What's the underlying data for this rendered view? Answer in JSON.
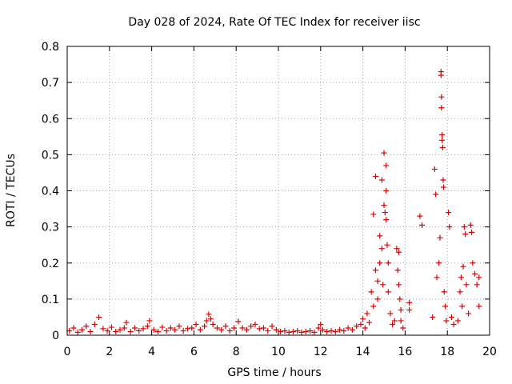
{
  "chart_data": {
    "type": "scatter",
    "title": "Day 028 of 2024, Rate Of TEC Index for receiver iisc",
    "xlabel": "GPS time / hours",
    "ylabel": "ROTI / TECUs",
    "xlim": [
      0,
      20
    ],
    "ylim": [
      0,
      0.8
    ],
    "x_ticks": [
      "0",
      "2",
      "4",
      "6",
      "8",
      "10",
      "12",
      "14",
      "16",
      "18",
      "20"
    ],
    "y_ticks": [
      "0",
      "0.1",
      "0.2",
      "0.3",
      "0.4",
      "0.5",
      "0.6",
      "0.7",
      "0.8"
    ],
    "marker": "plus",
    "marker_color": "#e00000",
    "series": [
      {
        "name": "ROTI",
        "points": [
          [
            0.1,
            0.012
          ],
          [
            0.3,
            0.02
          ],
          [
            0.5,
            0.008
          ],
          [
            0.7,
            0.015
          ],
          [
            0.9,
            0.025
          ],
          [
            1.1,
            0.01
          ],
          [
            1.3,
            0.03
          ],
          [
            1.5,
            0.05
          ],
          [
            1.7,
            0.018
          ],
          [
            1.9,
            0.012
          ],
          [
            2.1,
            0.022
          ],
          [
            2.3,
            0.01
          ],
          [
            2.5,
            0.015
          ],
          [
            2.7,
            0.02
          ],
          [
            2.8,
            0.035
          ],
          [
            3.0,
            0.01
          ],
          [
            3.2,
            0.02
          ],
          [
            3.4,
            0.012
          ],
          [
            3.6,
            0.018
          ],
          [
            3.8,
            0.025
          ],
          [
            3.9,
            0.04
          ],
          [
            4.1,
            0.015
          ],
          [
            4.3,
            0.01
          ],
          [
            4.5,
            0.022
          ],
          [
            4.7,
            0.012
          ],
          [
            4.9,
            0.02
          ],
          [
            5.1,
            0.015
          ],
          [
            5.3,
            0.025
          ],
          [
            5.5,
            0.012
          ],
          [
            5.7,
            0.018
          ],
          [
            5.9,
            0.02
          ],
          [
            6.1,
            0.03
          ],
          [
            6.3,
            0.015
          ],
          [
            6.5,
            0.025
          ],
          [
            6.6,
            0.04
          ],
          [
            6.7,
            0.058
          ],
          [
            6.8,
            0.045
          ],
          [
            6.9,
            0.03
          ],
          [
            7.1,
            0.02
          ],
          [
            7.3,
            0.015
          ],
          [
            7.5,
            0.025
          ],
          [
            7.7,
            0.012
          ],
          [
            7.9,
            0.02
          ],
          [
            8.1,
            0.038
          ],
          [
            8.3,
            0.02
          ],
          [
            8.5,
            0.015
          ],
          [
            8.7,
            0.025
          ],
          [
            8.9,
            0.03
          ],
          [
            9.1,
            0.018
          ],
          [
            9.3,
            0.02
          ],
          [
            9.5,
            0.012
          ],
          [
            9.7,
            0.025
          ],
          [
            9.9,
            0.015
          ],
          [
            10.1,
            0.01
          ],
          [
            10.3,
            0.012
          ],
          [
            10.5,
            0.008
          ],
          [
            10.7,
            0.01
          ],
          [
            10.9,
            0.012
          ],
          [
            11.1,
            0.008
          ],
          [
            11.3,
            0.01
          ],
          [
            11.5,
            0.012
          ],
          [
            11.7,
            0.008
          ],
          [
            11.9,
            0.02
          ],
          [
            12.0,
            0.03
          ],
          [
            12.1,
            0.015
          ],
          [
            12.3,
            0.01
          ],
          [
            12.5,
            0.012
          ],
          [
            12.7,
            0.01
          ],
          [
            12.9,
            0.015
          ],
          [
            13.1,
            0.012
          ],
          [
            13.3,
            0.02
          ],
          [
            13.5,
            0.015
          ],
          [
            13.7,
            0.025
          ],
          [
            13.9,
            0.03
          ],
          [
            14.0,
            0.045
          ],
          [
            14.1,
            0.02
          ],
          [
            14.2,
            0.06
          ],
          [
            14.3,
            0.035
          ],
          [
            14.4,
            0.12
          ],
          [
            14.5,
            0.08
          ],
          [
            14.5,
            0.335
          ],
          [
            14.6,
            0.44
          ],
          [
            14.6,
            0.18
          ],
          [
            14.7,
            0.1
          ],
          [
            14.7,
            0.15
          ],
          [
            14.8,
            0.2
          ],
          [
            14.8,
            0.275
          ],
          [
            14.9,
            0.43
          ],
          [
            14.9,
            0.24
          ],
          [
            14.95,
            0.14
          ],
          [
            15.0,
            0.505
          ],
          [
            15.0,
            0.36
          ],
          [
            15.05,
            0.34
          ],
          [
            15.1,
            0.47
          ],
          [
            15.1,
            0.4
          ],
          [
            15.1,
            0.32
          ],
          [
            15.15,
            0.25
          ],
          [
            15.2,
            0.2
          ],
          [
            15.2,
            0.12
          ],
          [
            15.3,
            0.06
          ],
          [
            15.4,
            0.03
          ],
          [
            15.5,
            0.04
          ],
          [
            15.6,
            0.24
          ],
          [
            15.65,
            0.18
          ],
          [
            15.7,
            0.23
          ],
          [
            15.7,
            0.14
          ],
          [
            15.75,
            0.1
          ],
          [
            15.8,
            0.07
          ],
          [
            15.8,
            0.04
          ],
          [
            15.9,
            0.02
          ],
          [
            16.2,
            0.09
          ],
          [
            16.2,
            0.07
          ],
          [
            16.7,
            0.33
          ],
          [
            16.8,
            0.305
          ],
          [
            17.3,
            0.05
          ],
          [
            17.4,
            0.46
          ],
          [
            17.45,
            0.39
          ],
          [
            17.5,
            0.16
          ],
          [
            17.6,
            0.2
          ],
          [
            17.65,
            0.27
          ],
          [
            17.7,
            0.73
          ],
          [
            17.7,
            0.72
          ],
          [
            17.72,
            0.66
          ],
          [
            17.72,
            0.63
          ],
          [
            17.75,
            0.555
          ],
          [
            17.75,
            0.54
          ],
          [
            17.78,
            0.52
          ],
          [
            17.8,
            0.43
          ],
          [
            17.82,
            0.41
          ],
          [
            17.85,
            0.12
          ],
          [
            17.9,
            0.08
          ],
          [
            17.95,
            0.04
          ],
          [
            18.05,
            0.34
          ],
          [
            18.1,
            0.3
          ],
          [
            18.2,
            0.05
          ],
          [
            18.3,
            0.03
          ],
          [
            18.5,
            0.04
          ],
          [
            18.6,
            0.12
          ],
          [
            18.65,
            0.16
          ],
          [
            18.7,
            0.08
          ],
          [
            18.75,
            0.19
          ],
          [
            18.8,
            0.3
          ],
          [
            18.85,
            0.28
          ],
          [
            18.9,
            0.14
          ],
          [
            19.0,
            0.06
          ],
          [
            19.1,
            0.305
          ],
          [
            19.15,
            0.285
          ],
          [
            19.2,
            0.2
          ],
          [
            19.3,
            0.17
          ],
          [
            19.4,
            0.14
          ],
          [
            19.5,
            0.16
          ],
          [
            19.5,
            0.08
          ]
        ]
      }
    ]
  }
}
